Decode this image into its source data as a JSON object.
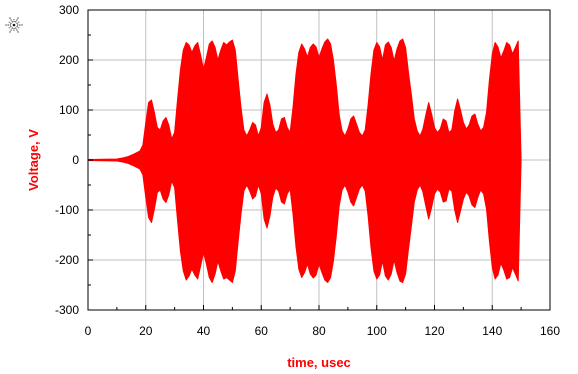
{
  "chart_data": {
    "type": "area",
    "xlabel": "time, usec",
    "ylabel": "Voltage, V",
    "xlim": [
      0,
      160
    ],
    "ylim": [
      -300,
      300
    ],
    "x_ticks": [
      0,
      20,
      40,
      60,
      80,
      100,
      120,
      140,
      160
    ],
    "y_ticks": [
      300,
      200,
      100,
      0,
      -100,
      -200,
      -300
    ],
    "x_tick_labels": [
      "0",
      "20",
      "40",
      "60",
      "80",
      "100",
      "120",
      "140",
      "160"
    ],
    "y_tick_labels": [
      "300",
      "200",
      "100",
      "0",
      "-100",
      "-200",
      "-300"
    ],
    "grid": true,
    "series": [
      {
        "color": "#ff0000",
        "fill": "symmetric-envelope",
        "x": [
          0,
          10,
          12,
          14,
          16,
          18,
          19,
          20,
          21,
          22,
          23,
          24,
          25,
          26,
          27,
          28,
          29,
          30,
          31,
          32,
          33,
          34,
          35,
          36,
          37,
          38,
          39,
          40,
          41,
          42,
          43,
          44,
          45,
          46,
          47,
          48,
          49,
          50,
          51,
          52,
          53,
          54,
          55,
          56,
          57,
          58,
          59,
          60,
          61,
          62,
          63,
          64,
          65,
          66,
          67,
          68,
          69,
          70,
          71,
          72,
          73,
          74,
          75,
          76,
          77,
          78,
          79,
          80,
          81,
          82,
          83,
          84,
          85,
          86,
          87,
          88,
          89,
          90,
          91,
          92,
          93,
          94,
          95,
          96,
          97,
          98,
          99,
          100,
          101,
          102,
          103,
          104,
          105,
          106,
          107,
          108,
          109,
          110,
          111,
          112,
          113,
          114,
          115,
          116,
          117,
          118,
          119,
          120,
          121,
          122,
          123,
          124,
          125,
          126,
          127,
          128,
          129,
          130,
          131,
          132,
          133,
          134,
          135,
          136,
          137,
          138,
          139,
          140,
          141,
          142,
          143,
          144,
          145,
          146,
          147,
          148,
          149,
          150
        ],
        "y_upper": [
          1,
          2,
          4,
          7,
          12,
          18,
          30,
          75,
          115,
          120,
          95,
          65,
          60,
          78,
          85,
          70,
          42,
          55,
          120,
          180,
          220,
          235,
          230,
          215,
          228,
          235,
          210,
          182,
          205,
          232,
          238,
          225,
          200,
          220,
          235,
          230,
          236,
          240,
          220,
          160,
          105,
          60,
          48,
          60,
          75,
          70,
          48,
          65,
          115,
          132,
          110,
          72,
          55,
          60,
          82,
          85,
          65,
          55,
          105,
          170,
          215,
          232,
          222,
          206,
          225,
          232,
          226,
          205,
          222,
          236,
          242,
          232,
          200,
          150,
          90,
          58,
          48,
          62,
          82,
          88,
          72,
          55,
          48,
          60,
          110,
          172,
          220,
          235,
          226,
          200,
          230,
          236,
          225,
          198,
          222,
          238,
          242,
          225,
          175,
          130,
          82,
          58,
          48,
          62,
          90,
          115,
          92,
          65,
          55,
          62,
          82,
          78,
          55,
          60,
          98,
          122,
          100,
          75,
          62,
          70,
          88,
          92,
          72,
          58,
          65,
          95,
          160,
          212,
          235,
          226,
          204,
          218,
          235,
          230,
          212,
          225,
          238,
          0
        ],
        "y_lower": [
          -1,
          -2,
          -4,
          -7,
          -12,
          -18,
          -30,
          -75,
          -115,
          -125,
          -98,
          -65,
          -60,
          -78,
          -85,
          -70,
          -42,
          -55,
          -120,
          -182,
          -222,
          -240,
          -232,
          -218,
          -230,
          -238,
          -212,
          -185,
          -208,
          -235,
          -245,
          -228,
          -202,
          -222,
          -238,
          -235,
          -240,
          -245,
          -222,
          -162,
          -108,
          -62,
          -50,
          -62,
          -78,
          -72,
          -50,
          -68,
          -118,
          -136,
          -112,
          -74,
          -56,
          -62,
          -84,
          -88,
          -68,
          -58,
          -108,
          -172,
          -218,
          -235,
          -225,
          -208,
          -228,
          -236,
          -230,
          -208,
          -225,
          -240,
          -245,
          -235,
          -202,
          -152,
          -92,
          -60,
          -50,
          -64,
          -84,
          -92,
          -75,
          -58,
          -50,
          -62,
          -112,
          -175,
          -222,
          -238,
          -230,
          -202,
          -232,
          -240,
          -228,
          -200,
          -225,
          -242,
          -245,
          -228,
          -178,
          -132,
          -84,
          -60,
          -50,
          -64,
          -92,
          -118,
          -95,
          -68,
          -58,
          -64,
          -84,
          -82,
          -58,
          -62,
          -100,
          -125,
          -102,
          -78,
          -64,
          -72,
          -90,
          -95,
          -75,
          -60,
          -68,
          -98,
          -162,
          -215,
          -238,
          -230,
          -206,
          -220,
          -238,
          -235,
          -215,
          -228,
          -242,
          0
        ]
      }
    ]
  },
  "logo": {
    "icon": "agilent-spark-icon",
    "color": "#1a1a1a"
  }
}
